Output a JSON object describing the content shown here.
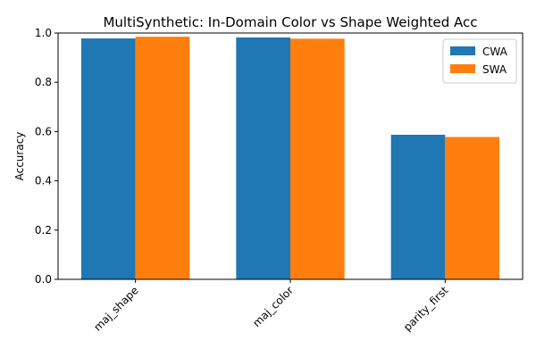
{
  "chart_data": {
    "type": "bar",
    "title": "MultiSynthetic: In-Domain Color vs Shape Weighted Acc",
    "xlabel": "",
    "ylabel": "Accuracy",
    "categories": [
      "maj_shape",
      "maj_color",
      "parity_first"
    ],
    "series": [
      {
        "name": "CWA",
        "values": [
          0.978,
          0.982,
          0.587
        ],
        "color": "#1f77b4"
      },
      {
        "name": "SWA",
        "values": [
          0.985,
          0.977,
          0.578
        ],
        "color": "#ff7f0e"
      }
    ],
    "ylim": [
      0,
      1.0
    ],
    "yticks": [
      "0.0",
      "0.2",
      "0.4",
      "0.6",
      "0.8",
      "1.0"
    ],
    "grid": false,
    "legend_position": "top-right"
  }
}
